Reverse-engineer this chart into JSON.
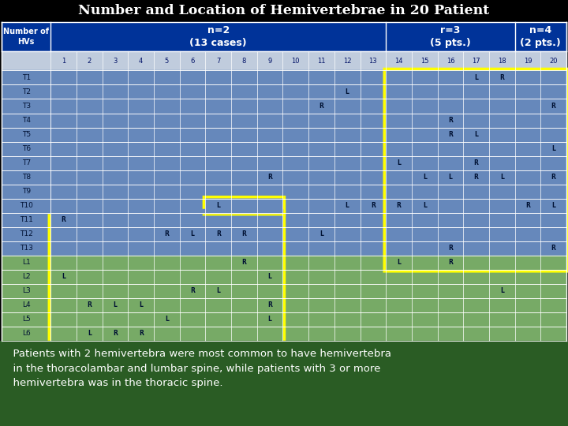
{
  "title": "Number and Location of Hemivertebrae in 20 Patient",
  "header_blue": "#003399",
  "blue_cell": "#6688BB",
  "green_cell": "#77AA66",
  "header_num_row_color": "#C0CCDD",
  "footer_bg": "#2A5C24",
  "footer_text": "  Patients with 2 hemivertebra were most common to have hemivertebra\n  in the thoracolambar and lumbar spine, while patients with 3 or more\n  hemivertebra was in the thoracic spine.",
  "rows": [
    "T1",
    "T2",
    "T3",
    "T4",
    "T5",
    "T6",
    "T7",
    "T8",
    "T9",
    "T10",
    "T11",
    "T12",
    "T13",
    "L1",
    "L2",
    "L3",
    "L4",
    "L5",
    "L6"
  ],
  "cell_data": {
    "T1": {
      "17": "L",
      "18": "R"
    },
    "T2": {
      "12": "L"
    },
    "T3": {
      "11": "R",
      "20": "R"
    },
    "T4": {
      "16": "R"
    },
    "T5": {
      "16": "R",
      "17": "L"
    },
    "T6": {
      "20": "L"
    },
    "T7": {
      "14": "L",
      "17": "R"
    },
    "T8": {
      "9": "R",
      "15": "L",
      "16": "L",
      "17": "R",
      "18": "L",
      "20": "R"
    },
    "T9": {},
    "T10": {
      "7": "L",
      "12": "L",
      "13": "R",
      "14": "R",
      "15": "L",
      "19": "R",
      "20": "L"
    },
    "T11": {
      "1": "R"
    },
    "T12": {
      "5": "R",
      "6": "L",
      "7": "R",
      "8": "R",
      "11": "L"
    },
    "T13": {
      "16": "R",
      "20": "R"
    },
    "L1": {
      "8": "R",
      "14": "L",
      "16": "R"
    },
    "L2": {
      "1": "L",
      "9": "L"
    },
    "L3": {
      "6": "R",
      "7": "L",
      "18": "L"
    },
    "L4": {
      "2": "R",
      "3": "L",
      "4": "L",
      "9": "R"
    },
    "L5": {
      "5": "L",
      "9": "L"
    },
    "L6": {
      "2": "L",
      "3": "R",
      "4": "R"
    }
  }
}
